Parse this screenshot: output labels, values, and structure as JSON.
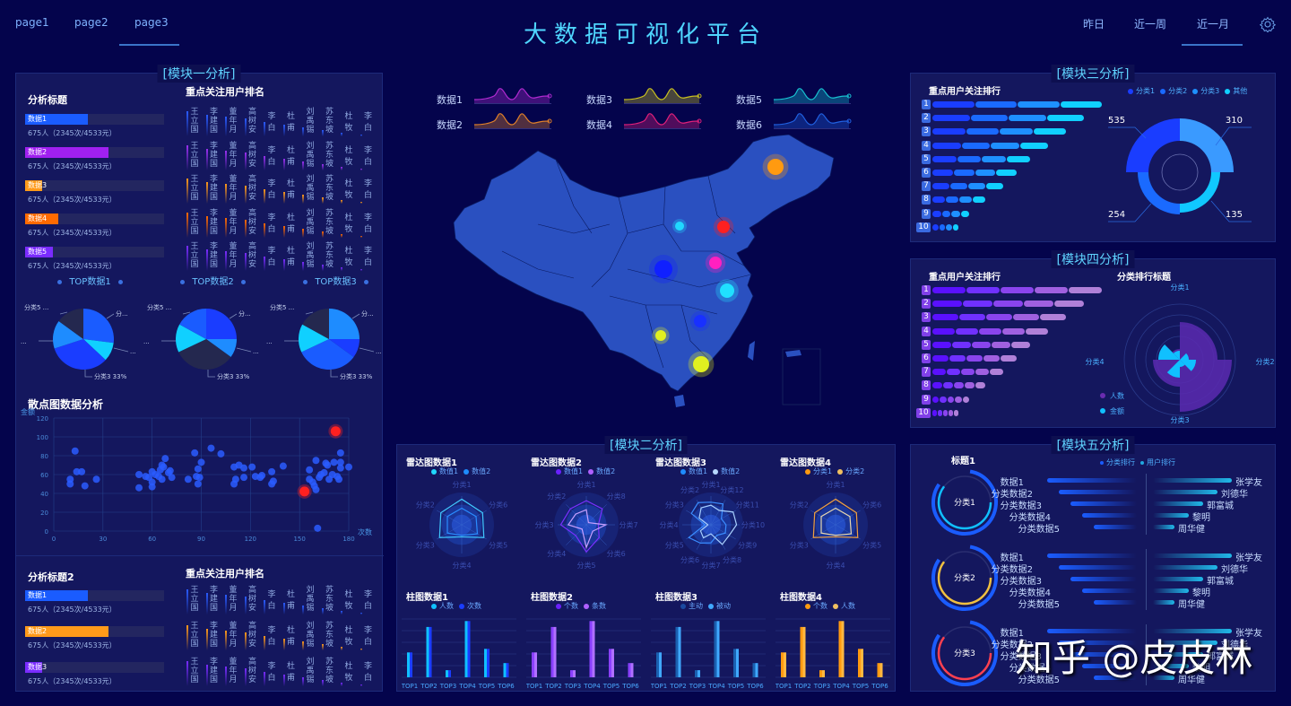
{
  "header": {
    "title": "大数据可视化平台",
    "nav_tabs": [
      {
        "label": "page1",
        "active": false
      },
      {
        "label": "page2",
        "active": false
      },
      {
        "label": "page3",
        "active": true
      }
    ],
    "time_filters": [
      {
        "label": "昨日",
        "active": false
      },
      {
        "label": "近一周",
        "active": false
      },
      {
        "label": "近一月",
        "active": true
      }
    ],
    "settings_icon": "gear-icon"
  },
  "colors": {
    "bg": "#04044c",
    "panel": "#14175e",
    "accent": "#4fd6ff",
    "blue": "#1a5cff",
    "purple": "#a020f0",
    "orange": "#ff9a1a",
    "orange2": "#ff6a00",
    "violet": "#7a2cff",
    "red": "#ff2020"
  },
  "module1": {
    "title": "模块一分析",
    "analysis": {
      "title": "分析标题",
      "items": [
        {
          "label": "数据1",
          "desc": "675人（2345次/4533元）",
          "pct": 45,
          "color": "#1a5cff"
        },
        {
          "label": "数据2",
          "desc": "675人（2345次/4533元）",
          "pct": 60,
          "color": "#a020f0"
        },
        {
          "label": "数据3",
          "desc": "675人（2345次/4533元）",
          "pct": 12,
          "color": "#ff9a1a"
        },
        {
          "label": "数据4",
          "desc": "675人（2345次/4533元）",
          "pct": 24,
          "color": "#ff6a00"
        },
        {
          "label": "数据5",
          "desc": "675人（2345次/4533元）",
          "pct": 20,
          "color": "#7a2cff"
        }
      ]
    },
    "ranking": {
      "title": "重点关注用户排名",
      "names": [
        "王立国",
        "李建国",
        "董年月",
        "高树安",
        "李白",
        "杜甫",
        "刘禹锡",
        "苏东坡",
        "杜牧",
        "李白"
      ],
      "bar_heights": [
        28,
        24,
        22,
        20,
        16,
        13,
        10,
        7,
        4,
        2
      ],
      "row_colors": [
        "#2a5cff",
        "#9a30f0",
        "#ff9a1a",
        "#ff6a00",
        "#7a2cff"
      ]
    },
    "pies": [
      {
        "title": "TOP数据1",
        "label_top_left": "分类5 ...",
        "label_top_right": "分...",
        "label_left": "...",
        "label_right": "...",
        "label_bottom": "分类3 33%",
        "slices": [
          {
            "v": 27,
            "c": "#1a5cff"
          },
          {
            "v": 10,
            "c": "#10d0ff"
          },
          {
            "v": 33,
            "c": "#1a3dff"
          },
          {
            "v": 15,
            "c": "#1e8cff"
          },
          {
            "v": 15,
            "c": "#24284f"
          }
        ]
      },
      {
        "title": "TOP数据2",
        "label_top_left": "分类5 ...",
        "label_top_right": "分...",
        "label_left": "...",
        "label_right": "...",
        "label_bottom": "分类3 33%",
        "slices": [
          {
            "v": 25,
            "c": "#1a3dff"
          },
          {
            "v": 10,
            "c": "#1e8cff"
          },
          {
            "v": 33,
            "c": "#24284f"
          },
          {
            "v": 15,
            "c": "#10d0ff"
          },
          {
            "v": 17,
            "c": "#1a5cff"
          }
        ]
      },
      {
        "title": "TOP数据3",
        "label_top_left": "分类5 ...",
        "label_top_right": "分...",
        "label_left": "...",
        "label_right": "...",
        "label_bottom": "分类3 33%",
        "slices": [
          {
            "v": 25,
            "c": "#1e8cff"
          },
          {
            "v": 10,
            "c": "#1a3dff"
          },
          {
            "v": 33,
            "c": "#1a5cff"
          },
          {
            "v": 15,
            "c": "#10d0ff"
          },
          {
            "v": 17,
            "c": "#24284f"
          }
        ]
      }
    ],
    "scatter": {
      "title": "散点图数据分析",
      "ylabel": "金额",
      "xlabel": "次数",
      "x_ticks": [
        0,
        30,
        60,
        90,
        120,
        150,
        180
      ],
      "y_ticks": [
        0,
        20,
        40,
        60,
        80,
        100,
        120
      ]
    }
  },
  "module1b": {
    "analysis": {
      "title": "分析标题2",
      "items": [
        {
          "label": "数据1",
          "desc": "675人（2345次/4533元）",
          "pct": 45,
          "color": "#1a5cff"
        },
        {
          "label": "数据2",
          "desc": "675人（2345次/4533元）",
          "pct": 60,
          "color": "#ff9a1a"
        },
        {
          "label": "数据3",
          "desc": "675人（2345次/4533元）",
          "pct": 12,
          "color": "#7a2cff"
        }
      ]
    },
    "ranking": {
      "title": "重点关注用户排名",
      "row_colors": [
        "#2a5cff",
        "#ff9a1a",
        "#7a2cff"
      ]
    }
  },
  "sparklines": [
    {
      "label": "数据1",
      "color": "#b02ad0"
    },
    {
      "label": "数据2",
      "color": "#e0802a"
    },
    {
      "label": "数据3",
      "color": "#c8c020"
    },
    {
      "label": "数据4",
      "color": "#e0207a"
    },
    {
      "label": "数据5",
      "color": "#18c0d0"
    },
    {
      "label": "数据6",
      "color": "#2060e0"
    }
  ],
  "map": {
    "points": [
      {
        "x": 865,
        "y": 186,
        "r": 9,
        "color": "#ff9a10"
      },
      {
        "x": 807,
        "y": 253,
        "r": 7,
        "color": "#ff2020"
      },
      {
        "x": 758,
        "y": 252,
        "r": 5,
        "color": "#20d8ff"
      },
      {
        "x": 798,
        "y": 293,
        "r": 7,
        "color": "#ff20c0"
      },
      {
        "x": 740,
        "y": 300,
        "r": 10,
        "color": "#1020ff"
      },
      {
        "x": 811,
        "y": 324,
        "r": 8,
        "color": "#20e0ff"
      },
      {
        "x": 781,
        "y": 358,
        "r": 7,
        "color": "#1830ff"
      },
      {
        "x": 737,
        "y": 374,
        "r": 6,
        "color": "#e0f020"
      },
      {
        "x": 782,
        "y": 406,
        "r": 9,
        "color": "#e0f020"
      }
    ]
  },
  "module2": {
    "title": "模块二分析",
    "radars": [
      {
        "title": "雷达图数据1",
        "legend": [
          {
            "label": "数值1",
            "color": "#20d8ff"
          },
          {
            "label": "数值2",
            "color": "#1e8cff"
          }
        ],
        "axes": [
          "分类1",
          "分类6",
          "分类5",
          "分类4",
          "分类3",
          "分类2"
        ],
        "c1": "#40c8ff",
        "c2": "#2a8cff",
        "s1": [
          0.85,
          0.8,
          0.85,
          0.4,
          0.85,
          0.8
        ],
        "s2": [
          0.55,
          0.55,
          0.6,
          0.35,
          0.55,
          0.55
        ]
      },
      {
        "title": "雷达图数据2",
        "legend": [
          {
            "label": "数值1",
            "color": "#6a20ff"
          },
          {
            "label": "数值2",
            "color": "#b060ff"
          }
        ],
        "axes": [
          "分类1",
          "分类8",
          "分类7",
          "分类6",
          "分类5",
          "分类4",
          "分类3",
          "分类2"
        ],
        "c1": "#7a30ff",
        "c2": "#c8a0ff",
        "s1": [
          0.8,
          0.75,
          0.4,
          0.6,
          0.9,
          0.5,
          0.85,
          0.75
        ],
        "s2": [
          0.5,
          0.1,
          0.65,
          0.3,
          0.75,
          0.2,
          0.6,
          0.5
        ]
      },
      {
        "title": "雷达图数据3",
        "legend": [
          {
            "label": "数值1",
            "color": "#1e8cff"
          },
          {
            "label": "数值2",
            "color": "#b8d8ff"
          }
        ],
        "axes": [
          "分类1",
          "分类12",
          "分类11",
          "分类10",
          "分类9",
          "分类8",
          "分类7",
          "分类6",
          "分类5",
          "分类4",
          "分类3",
          "分类2"
        ],
        "c1": "#3a8cff",
        "c2": "#a8d0ff",
        "s1": [
          0.75,
          0.8,
          0.4,
          0.5,
          0.55,
          0.4,
          0.6,
          0.7,
          0.85,
          0.2,
          0.75,
          0.85
        ],
        "s2": [
          0.65,
          0.55,
          0.85,
          0.85,
          0.7,
          0.75,
          0.3,
          0.5,
          0.4,
          0.1,
          0.45,
          0.65
        ]
      },
      {
        "title": "雷达图数据4",
        "legend": [
          {
            "label": "分类1",
            "color": "#ff9a10"
          },
          {
            "label": "分类2",
            "color": "#f0c060"
          }
        ],
        "axes": [
          "分类1",
          "分类6",
          "分类5",
          "分类4",
          "分类3",
          "分类2"
        ],
        "c1": "#f0a040",
        "c2": "#e8d8b0",
        "s1": [
          0.85,
          0.8,
          0.85,
          0.4,
          0.85,
          0.8
        ],
        "s2": [
          0.55,
          0.55,
          0.6,
          0.35,
          0.55,
          0.55
        ]
      }
    ],
    "bars": [
      {
        "title": "柱图数据1",
        "legend": [
          {
            "label": "人数",
            "color": "#10c0ff"
          },
          {
            "label": "次数",
            "color": "#1a3dff"
          }
        ],
        "c1": "#10c0ff",
        "c2": "#1a3dff"
      },
      {
        "title": "柱图数据2",
        "legend": [
          {
            "label": "个数",
            "color": "#6a20ff"
          },
          {
            "label": "条数",
            "color": "#b060ff"
          }
        ],
        "c1": "#8a40ff",
        "c2": "#b070ff"
      },
      {
        "title": "柱图数据3",
        "legend": [
          {
            "label": "主动",
            "color": "#1a4aa0"
          },
          {
            "label": "被动",
            "color": "#40a8ff"
          }
        ],
        "c1": "#1a60b0",
        "c2": "#40a8ff"
      },
      {
        "title": "柱图数据4",
        "legend": [
          {
            "label": "个数",
            "color": "#ff9a10"
          },
          {
            "label": "人数",
            "color": "#f0c060"
          }
        ],
        "c1": "#ff9a10",
        "c2": "#ffb840"
      }
    ],
    "bar_categories": [
      "TOP1",
      "TOP2",
      "TOP3",
      "TOP4",
      "TOP5",
      "TOP6"
    ],
    "bar_values": [
      42,
      85,
      12,
      95,
      48,
      24
    ]
  },
  "module3": {
    "title": "模块三分析",
    "ranking_title": "重点用户关注排行",
    "legend": [
      {
        "label": "分类1",
        "color": "#1a3dff"
      },
      {
        "label": "分类2",
        "color": "#1a6aff"
      },
      {
        "label": "分类3",
        "color": "#1e90ff"
      },
      {
        "label": "其他",
        "color": "#10d0ff"
      }
    ],
    "rank_numbers": [
      "1",
      "2",
      "3",
      "4",
      "5",
      "6",
      "7",
      "8",
      "9",
      "10"
    ],
    "segment_colors": [
      "#1a3dff",
      "#1a6aff",
      "#1e90ff",
      "#10d0ff"
    ],
    "donut": {
      "values": [
        {
          "label": "535",
          "v": 535,
          "c": "#1a3dff"
        },
        {
          "label": "310",
          "v": 310,
          "c": "#3a9aff"
        },
        {
          "label": "135",
          "v": 135,
          "c": "#10c8ff"
        },
        {
          "label": "254",
          "v": 254,
          "c": "#1a6aff"
        }
      ]
    }
  },
  "module4": {
    "title": "模块四分析",
    "ranking_title": "重点用户关注排行",
    "rose_title": "分类排行标题",
    "rank_numbers": [
      "1",
      "2",
      "3",
      "4",
      "5",
      "6",
      "7",
      "8",
      "9",
      "10"
    ],
    "segment_colors": [
      "#5a10ff",
      "#7030ff",
      "#8a44ee",
      "#a060e0",
      "#b080d8"
    ],
    "rose_axes": [
      "分类1",
      "分类2",
      "分类3",
      "分类4"
    ],
    "rose_legend": [
      {
        "label": "人数",
        "color": "#6a2cb0"
      },
      {
        "label": "金额",
        "color": "#10c0ff"
      }
    ]
  },
  "module5": {
    "title": "模块五分析",
    "legend": [
      {
        "label": "分类排行",
        "color": "#1a5cff"
      },
      {
        "label": "用户排行",
        "color": "#20a8e0"
      }
    ],
    "groups": [
      {
        "title": "标题1",
        "center": "分类1",
        "ring_color": "#10c0ff"
      },
      {
        "title": "",
        "center": "分类2",
        "ring_color": "#f0c040"
      },
      {
        "title": "",
        "center": "分类3",
        "ring_color": "#ff4050"
      }
    ],
    "left_labels": [
      "数据1",
      "分类数据2",
      "分类数据3",
      "分类数据4",
      "分类数据5"
    ],
    "right_labels": [
      "张学友",
      "刘德华",
      "郭富城",
      "黎明",
      "周华健"
    ]
  },
  "watermark": "知乎 @皮皮林"
}
